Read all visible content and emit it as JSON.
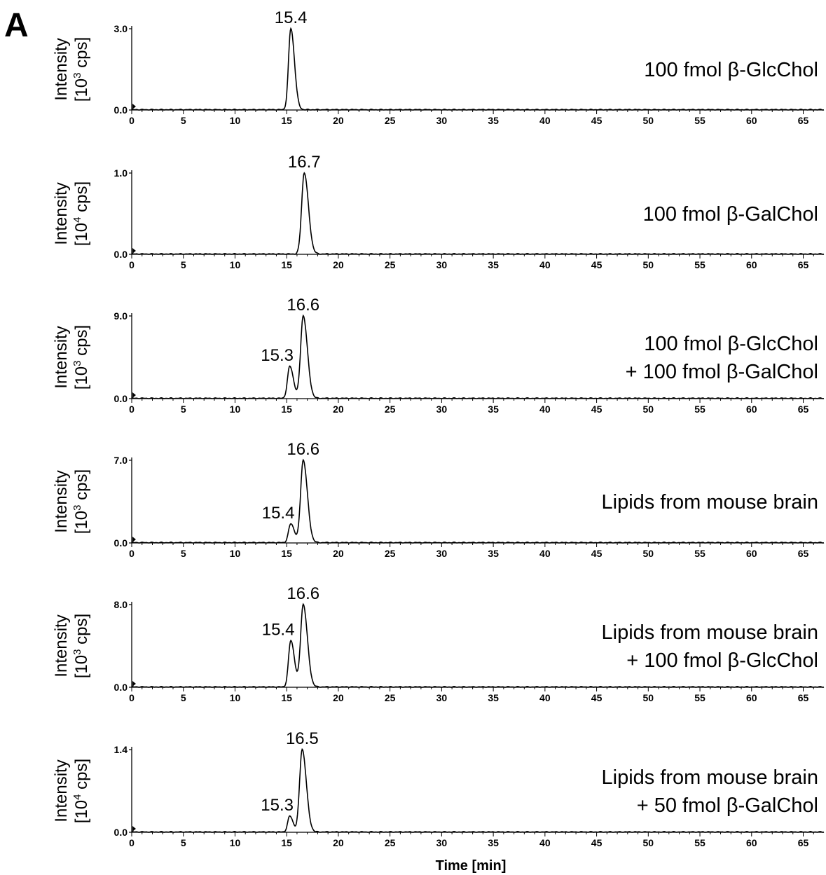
{
  "panel_label": "A",
  "chart_data": [
    {
      "type": "line",
      "ylabel": [
        "Intensity",
        "[10",
        "3",
        " cps]"
      ],
      "ytick_labels": [
        "0.0",
        "3.0"
      ],
      "ylim": [
        0,
        3.0
      ],
      "sample": [
        "100 fmol β-GlcChol"
      ],
      "peaks": [
        {
          "x": 15.4,
          "y": 3.0,
          "w": 0.22,
          "label": "15.4"
        }
      ],
      "xlim": [
        0,
        67
      ]
    },
    {
      "type": "line",
      "ylabel": [
        "Intensity",
        "[10",
        "4",
        " cps]"
      ],
      "ytick_labels": [
        "0.0",
        "1.0"
      ],
      "ylim": [
        0,
        1.0
      ],
      "sample": [
        "100 fmol β-GalChol"
      ],
      "peaks": [
        {
          "x": 16.7,
          "y": 1.0,
          "w": 0.25,
          "label": "16.7"
        }
      ],
      "xlim": [
        0,
        67
      ]
    },
    {
      "type": "line",
      "ylabel": [
        "Intensity",
        "[10",
        "3",
        " cps]"
      ],
      "ytick_labels": [
        "0.0",
        "9.0"
      ],
      "ylim": [
        0,
        9.0
      ],
      "sample": [
        "100 fmol β-GlcChol",
        "+ 100 fmol β-GalChol"
      ],
      "peaks": [
        {
          "x": 15.3,
          "y": 3.5,
          "w": 0.22,
          "label": "15.3"
        },
        {
          "x": 16.6,
          "y": 9.0,
          "w": 0.25,
          "label": "16.6"
        }
      ],
      "xlim": [
        0,
        67
      ]
    },
    {
      "type": "line",
      "ylabel": [
        "Intensity",
        "[10",
        "3",
        " cps]"
      ],
      "ytick_labels": [
        "0.0",
        "7.0"
      ],
      "ylim": [
        0,
        7.0
      ],
      "sample": [
        "Lipids from mouse brain"
      ],
      "peaks": [
        {
          "x": 15.4,
          "y": 1.6,
          "w": 0.22,
          "label": "15.4"
        },
        {
          "x": 16.6,
          "y": 7.0,
          "w": 0.25,
          "label": "16.6"
        }
      ],
      "xlim": [
        0,
        67
      ]
    },
    {
      "type": "line",
      "ylabel": [
        "Intensity",
        "[10",
        "3",
        " cps]"
      ],
      "ytick_labels": [
        "0.0",
        "8.0"
      ],
      "ylim": [
        0,
        8.0
      ],
      "sample": [
        "Lipids from mouse brain",
        "+ 100 fmol β-GlcChol"
      ],
      "peaks": [
        {
          "x": 15.4,
          "y": 4.5,
          "w": 0.22,
          "label": "15.4"
        },
        {
          "x": 16.6,
          "y": 8.0,
          "w": 0.25,
          "label": "16.6"
        }
      ],
      "xlim": [
        0,
        67
      ]
    },
    {
      "type": "line",
      "ylabel": [
        "Intensity",
        "[10",
        "4",
        " cps]"
      ],
      "ytick_labels": [
        "0.0",
        "1.4"
      ],
      "ylim": [
        0,
        1.4
      ],
      "sample": [
        "Lipids from mouse brain",
        "+ 50 fmol β-GalChol"
      ],
      "peaks": [
        {
          "x": 15.3,
          "y": 0.27,
          "w": 0.2,
          "label": "15.3"
        },
        {
          "x": 16.5,
          "y": 1.4,
          "w": 0.25,
          "label": "16.5"
        }
      ],
      "xlim": [
        0,
        67
      ]
    }
  ],
  "xticks": [
    0,
    5,
    10,
    15,
    20,
    25,
    30,
    35,
    40,
    45,
    50,
    55,
    60,
    65
  ],
  "xlabel": "Time [min]"
}
